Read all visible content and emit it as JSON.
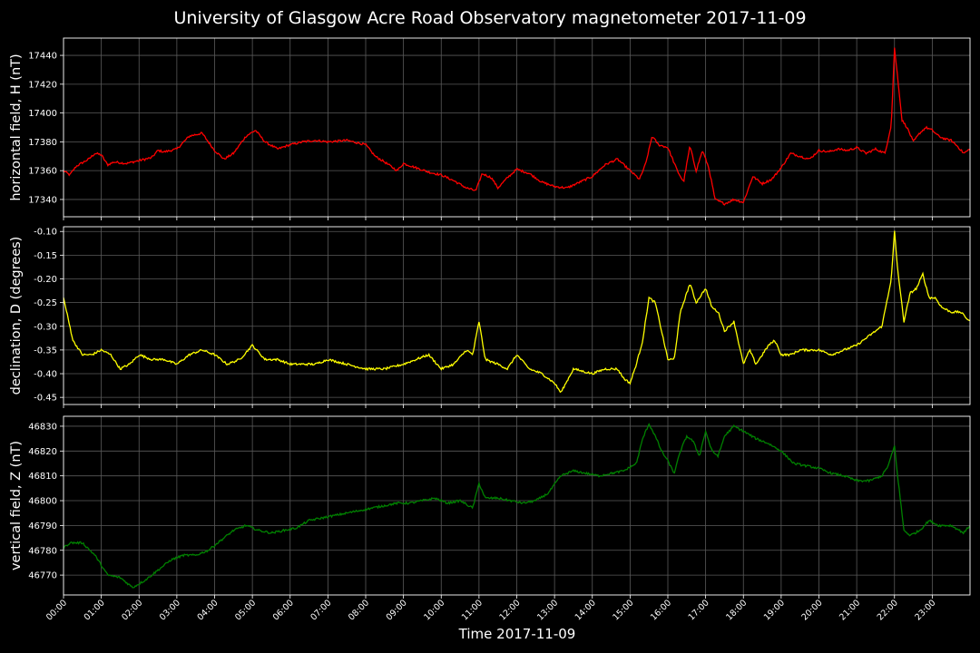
{
  "title": "University of Glasgow Acre Road Observatory magnetometer 2017-11-09",
  "chart_data": {
    "type": "line",
    "xlabel": "Time 2017-11-09",
    "x_tick_labels": [
      "00:00",
      "01:00",
      "02:00",
      "03:00",
      "04:00",
      "05:00",
      "06:00",
      "07:00",
      "08:00",
      "09:00",
      "10:00",
      "11:00",
      "12:00",
      "13:00",
      "14:00",
      "15:00",
      "16:00",
      "17:00",
      "18:00",
      "19:00",
      "20:00",
      "21:00",
      "22:00",
      "23:00"
    ],
    "xlim": [
      "00:00",
      "24:00"
    ],
    "grid": true,
    "panels": [
      {
        "ylabel": "horizontal field, H (nT)",
        "color": "#ff0000",
        "ylim": [
          17328,
          17452
        ],
        "yticks": [
          17340,
          17360,
          17380,
          17400,
          17420,
          17440
        ],
        "series": {
          "x": [
            "00:00",
            "00:10",
            "00:20",
            "00:40",
            "00:50",
            "01:00",
            "01:10",
            "01:20",
            "01:40",
            "02:00",
            "02:20",
            "02:30",
            "02:40",
            "03:00",
            "03:20",
            "03:40",
            "04:00",
            "04:15",
            "04:30",
            "04:50",
            "05:05",
            "05:20",
            "05:40",
            "06:00",
            "06:20",
            "06:40",
            "07:00",
            "07:30",
            "08:00",
            "08:15",
            "08:30",
            "08:50",
            "09:00",
            "09:20",
            "09:40",
            "10:00",
            "10:20",
            "10:40",
            "10:55",
            "11:05",
            "11:20",
            "11:30",
            "11:45",
            "12:00",
            "12:20",
            "12:40",
            "13:00",
            "13:20",
            "13:40",
            "14:00",
            "14:20",
            "14:40",
            "15:00",
            "15:15",
            "15:25",
            "15:35",
            "15:45",
            "16:00",
            "16:15",
            "16:25",
            "16:35",
            "16:45",
            "16:55",
            "17:05",
            "17:15",
            "17:30",
            "17:45",
            "18:00",
            "18:15",
            "18:30",
            "18:45",
            "19:00",
            "19:15",
            "19:30",
            "19:45",
            "20:00",
            "20:15",
            "20:30",
            "20:45",
            "21:00",
            "21:15",
            "21:30",
            "21:45",
            "21:55",
            "22:00",
            "22:05",
            "22:12",
            "22:20",
            "22:30",
            "22:40",
            "22:50",
            "23:00",
            "23:10",
            "23:20",
            "23:30",
            "23:40",
            "23:50",
            "24:00"
          ],
          "values": [
            17360,
            17357,
            17363,
            17368,
            17372,
            17371,
            17364,
            17366,
            17365,
            17367,
            17369,
            17374,
            17373,
            17375,
            17384,
            17386,
            17374,
            17368,
            17372,
            17384,
            17388,
            17380,
            17375,
            17378,
            17380,
            17381,
            17380,
            17381,
            17378,
            17370,
            17366,
            17360,
            17365,
            17362,
            17359,
            17357,
            17353,
            17348,
            17346,
            17358,
            17355,
            17348,
            17355,
            17361,
            17358,
            17352,
            17349,
            17348,
            17352,
            17356,
            17364,
            17368,
            17360,
            17354,
            17365,
            17384,
            17378,
            17376,
            17360,
            17352,
            17377,
            17360,
            17374,
            17362,
            17340,
            17337,
            17340,
            17338,
            17356,
            17351,
            17354,
            17362,
            17372,
            17370,
            17368,
            17374,
            17373,
            17375,
            17374,
            17376,
            17372,
            17375,
            17372,
            17392,
            17445,
            17425,
            17395,
            17390,
            17380,
            17386,
            17390,
            17388,
            17384,
            17382,
            17381,
            17377,
            17372,
            17375
          ]
        }
      },
      {
        "ylabel": "declination, D (degrees)",
        "color": "#ffff00",
        "ylim": [
          -0.465,
          -0.09
        ],
        "yticks": [
          -0.45,
          -0.4,
          -0.35,
          -0.3,
          -0.25,
          -0.2,
          -0.15,
          -0.1
        ],
        "series": {
          "x": [
            "00:00",
            "00:05",
            "00:15",
            "00:30",
            "00:45",
            "01:00",
            "01:15",
            "01:30",
            "01:45",
            "02:00",
            "02:20",
            "02:40",
            "03:00",
            "03:20",
            "03:40",
            "04:00",
            "04:20",
            "04:40",
            "05:00",
            "05:20",
            "05:40",
            "06:00",
            "06:20",
            "06:40",
            "07:00",
            "07:30",
            "08:00",
            "08:30",
            "09:00",
            "09:20",
            "09:40",
            "10:00",
            "10:20",
            "10:40",
            "10:50",
            "11:00",
            "11:10",
            "11:30",
            "11:45",
            "12:00",
            "12:20",
            "12:40",
            "13:00",
            "13:10",
            "13:30",
            "14:00",
            "14:20",
            "14:40",
            "14:50",
            "15:00",
            "15:10",
            "15:20",
            "15:30",
            "15:40",
            "15:50",
            "16:00",
            "16:10",
            "16:20",
            "16:35",
            "16:45",
            "17:00",
            "17:10",
            "17:20",
            "17:30",
            "17:45",
            "18:00",
            "18:10",
            "18:20",
            "18:30",
            "18:40",
            "18:50",
            "19:00",
            "19:15",
            "19:30",
            "19:45",
            "20:00",
            "20:20",
            "20:40",
            "21:00",
            "21:20",
            "21:40",
            "21:55",
            "22:00",
            "22:05",
            "22:15",
            "22:25",
            "22:35",
            "22:45",
            "22:55",
            "23:05",
            "23:15",
            "23:30",
            "23:45",
            "24:00"
          ],
          "values": [
            -0.24,
            -0.27,
            -0.33,
            -0.36,
            -0.36,
            -0.35,
            -0.36,
            -0.39,
            -0.38,
            -0.36,
            -0.37,
            -0.37,
            -0.38,
            -0.36,
            -0.35,
            -0.36,
            -0.38,
            -0.37,
            -0.34,
            -0.37,
            -0.37,
            -0.38,
            -0.38,
            -0.38,
            -0.37,
            -0.38,
            -0.39,
            -0.39,
            -0.38,
            -0.37,
            -0.36,
            -0.39,
            -0.38,
            -0.35,
            -0.36,
            -0.29,
            -0.37,
            -0.38,
            -0.39,
            -0.36,
            -0.39,
            -0.4,
            -0.42,
            -0.44,
            -0.39,
            -0.4,
            -0.39,
            -0.39,
            -0.41,
            -0.42,
            -0.38,
            -0.33,
            -0.24,
            -0.25,
            -0.31,
            -0.37,
            -0.37,
            -0.27,
            -0.21,
            -0.25,
            -0.22,
            -0.26,
            -0.27,
            -0.31,
            -0.29,
            -0.38,
            -0.35,
            -0.38,
            -0.36,
            -0.34,
            -0.33,
            -0.36,
            -0.36,
            -0.35,
            -0.35,
            -0.35,
            -0.36,
            -0.35,
            -0.34,
            -0.32,
            -0.3,
            -0.2,
            -0.1,
            -0.18,
            -0.29,
            -0.23,
            -0.22,
            -0.19,
            -0.24,
            -0.24,
            -0.26,
            -0.27,
            -0.27,
            -0.29
          ]
        }
      },
      {
        "ylabel": "vertical field, Z (nT)",
        "color": "#008000",
        "ylim": [
          46762,
          46834
        ],
        "yticks": [
          46770,
          46780,
          46790,
          46800,
          46810,
          46820,
          46830
        ],
        "series": {
          "x": [
            "00:00",
            "00:10",
            "00:30",
            "00:50",
            "01:10",
            "01:30",
            "01:50",
            "02:10",
            "02:30",
            "02:50",
            "03:10",
            "03:30",
            "03:50",
            "04:10",
            "04:30",
            "04:50",
            "05:10",
            "05:30",
            "05:50",
            "06:10",
            "06:30",
            "06:50",
            "07:10",
            "07:30",
            "07:50",
            "08:10",
            "08:30",
            "08:50",
            "09:10",
            "09:30",
            "09:50",
            "10:10",
            "10:30",
            "10:50",
            "11:00",
            "11:10",
            "11:30",
            "11:50",
            "12:10",
            "12:30",
            "12:50",
            "13:10",
            "13:30",
            "13:50",
            "14:10",
            "14:30",
            "14:50",
            "15:10",
            "15:20",
            "15:30",
            "15:40",
            "15:50",
            "16:00",
            "16:10",
            "16:20",
            "16:30",
            "16:40",
            "16:50",
            "17:00",
            "17:10",
            "17:20",
            "17:30",
            "17:45",
            "18:00",
            "18:20",
            "18:40",
            "19:00",
            "19:20",
            "19:40",
            "20:00",
            "20:20",
            "20:40",
            "21:00",
            "21:20",
            "21:40",
            "21:50",
            "22:00",
            "22:05",
            "22:15",
            "22:25",
            "22:40",
            "22:55",
            "23:10",
            "23:30",
            "23:50",
            "24:00"
          ],
          "values": [
            46781,
            46783,
            46783,
            46778,
            46770,
            46769,
            46765,
            46768,
            46772,
            46776,
            46778,
            46778,
            46780,
            46784,
            46788,
            46790,
            46788,
            46787,
            46788,
            46789,
            46792,
            46793,
            46794,
            46795,
            46796,
            46797,
            46798,
            46799,
            46799,
            46800,
            46801,
            46799,
            46800,
            46797,
            46807,
            46801,
            46801,
            46800,
            46799,
            46800,
            46803,
            46810,
            46812,
            46811,
            46810,
            46811,
            46812,
            46815,
            46825,
            46831,
            46826,
            46820,
            46816,
            46811,
            46820,
            46826,
            46824,
            46818,
            46828,
            46820,
            46818,
            46826,
            46830,
            46828,
            46825,
            46823,
            46820,
            46815,
            46814,
            46813,
            46811,
            46810,
            46808,
            46808,
            46810,
            46814,
            46822,
            46810,
            46788,
            46786,
            46788,
            46792,
            46790,
            46790,
            46787,
            46790
          ]
        }
      }
    ]
  }
}
